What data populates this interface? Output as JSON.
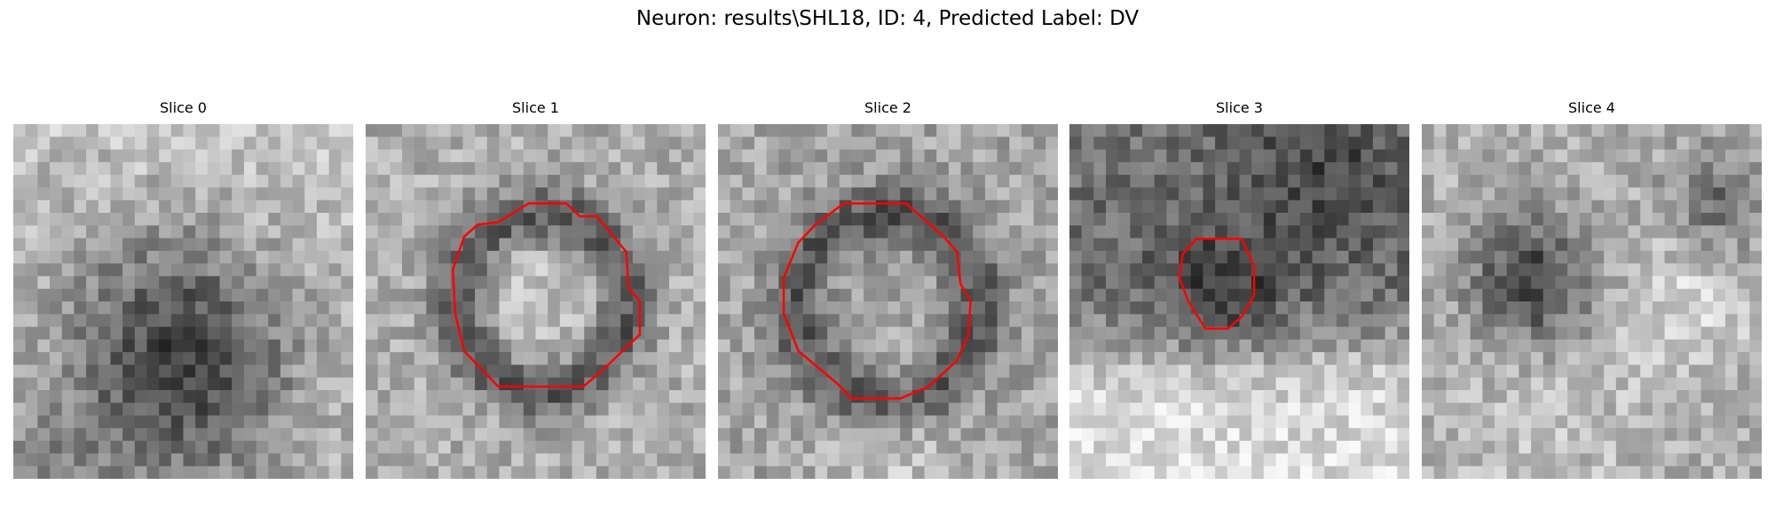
{
  "header": {
    "title": "Neuron: results\\SHL18, ID: 4, Predicted Label: DV"
  },
  "panels": [
    {
      "title": "Slice 0"
    },
    {
      "title": "Slice 1"
    },
    {
      "title": "Slice 2"
    },
    {
      "title": "Slice 3"
    },
    {
      "title": "Slice 4"
    }
  ]
}
